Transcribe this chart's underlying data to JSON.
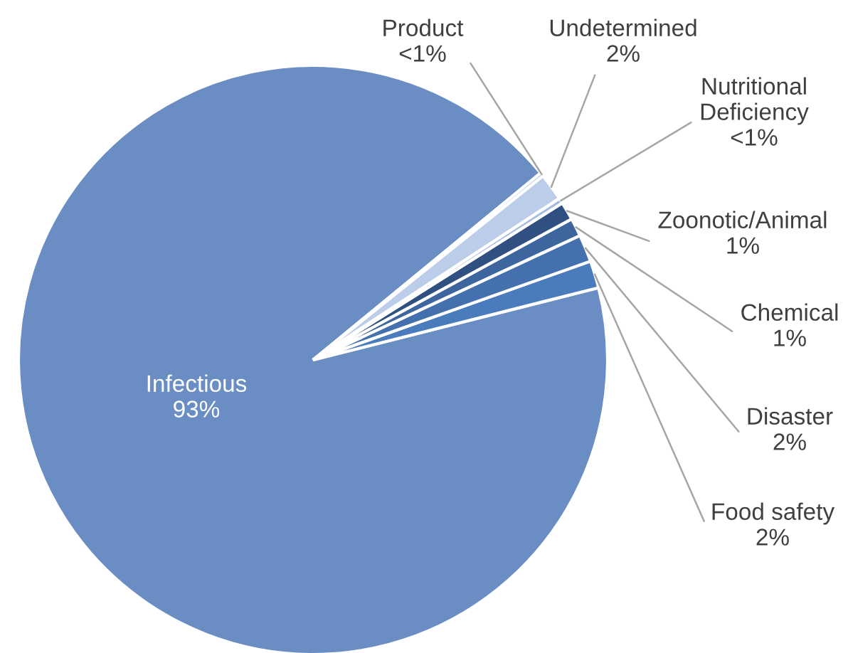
{
  "chart_data": {
    "type": "pie",
    "categories": [
      "Infectious",
      "Food safety",
      "Disaster",
      "Chemical",
      "Zoonotic/Animal",
      "Nutritional Deficiency",
      "Undetermined",
      "Product"
    ],
    "values": [
      93.0,
      1.5,
      1.5,
      1.0,
      1.0,
      0.3,
      1.5,
      0.2
    ],
    "value_labels": [
      "93%",
      "2%",
      "2%",
      "1%",
      "1%",
      "<1%",
      "2%",
      "<1%"
    ],
    "colors": [
      "#6a8ec4",
      "#4a7bbd",
      "#4471ad",
      "#3d659e",
      "#2f5080",
      "#a5bbe0",
      "#bccde9",
      "#aec3e4"
    ]
  }
}
